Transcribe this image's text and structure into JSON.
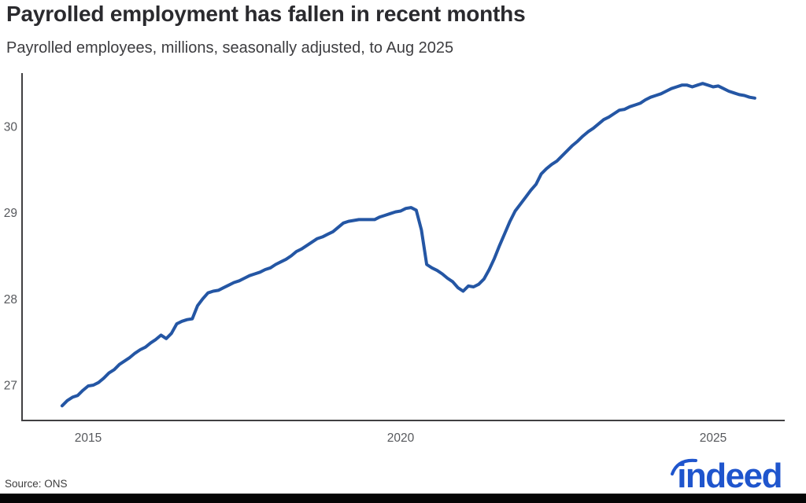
{
  "header": {
    "title": "Payrolled employment has fallen in recent months",
    "subtitle": "Payrolled employees, millions, seasonally adjusted, to Aug 2025"
  },
  "chart_data": {
    "type": "line",
    "title": "Payrolled employment has fallen in recent months",
    "xlabel": "",
    "ylabel": "Payrolled employees, millions",
    "x_ticks": [
      "2015",
      "2020",
      "2025"
    ],
    "x_tick_years": [
      2015,
      2020,
      2025
    ],
    "y_ticks": [
      "27",
      "28",
      "29",
      "30"
    ],
    "y_tick_values": [
      27,
      28,
      29,
      30
    ],
    "x_range_years": [
      2013.94,
      2026.15
    ],
    "ylim": [
      26.6,
      30.62
    ],
    "grid": false,
    "legend_position": "none",
    "line_color": "#2456a4",
    "axis_color": "#414042",
    "tick_label_color": "#56585c",
    "series": [
      {
        "name": "Payrolled employees, millions, seasonally adjusted",
        "x_start_year": 2014.583,
        "x_start_label": "Jul 2014",
        "x_end_label": "Aug 2025",
        "x_step": "monthly",
        "values": [
          26.76,
          26.82,
          26.86,
          26.88,
          26.94,
          26.99,
          27.0,
          27.03,
          27.08,
          27.14,
          27.18,
          27.24,
          27.28,
          27.32,
          27.37,
          27.41,
          27.44,
          27.49,
          27.53,
          27.58,
          27.54,
          27.6,
          27.71,
          27.74,
          27.76,
          27.77,
          27.92,
          28.0,
          28.07,
          28.09,
          28.1,
          28.13,
          28.16,
          28.19,
          28.21,
          28.24,
          28.27,
          28.29,
          28.31,
          28.34,
          28.36,
          28.4,
          28.43,
          28.46,
          28.5,
          28.55,
          28.58,
          28.62,
          28.66,
          28.7,
          28.72,
          28.75,
          28.78,
          28.83,
          28.88,
          28.9,
          28.91,
          28.92,
          28.92,
          28.92,
          28.92,
          28.95,
          28.97,
          28.99,
          29.01,
          29.02,
          29.05,
          29.06,
          29.03,
          28.8,
          28.4,
          28.36,
          28.33,
          28.29,
          28.24,
          28.2,
          28.13,
          28.09,
          28.15,
          28.14,
          28.17,
          28.23,
          28.34,
          28.47,
          28.62,
          28.76,
          28.9,
          29.02,
          29.1,
          29.18,
          29.26,
          29.33,
          29.45,
          29.51,
          29.56,
          29.6,
          29.66,
          29.72,
          29.78,
          29.83,
          29.89,
          29.94,
          29.98,
          30.03,
          30.08,
          30.11,
          30.15,
          30.19,
          30.2,
          30.23,
          30.25,
          30.27,
          30.31,
          30.34,
          30.36,
          30.38,
          30.41,
          30.44,
          30.46,
          30.48,
          30.48,
          30.46,
          30.48,
          30.5,
          30.48,
          30.46,
          30.47,
          30.44,
          30.41,
          30.39,
          30.37,
          30.36,
          30.34,
          30.33
        ]
      }
    ]
  },
  "footer": {
    "source": "Source: ONS",
    "logo_text": "indeed",
    "logo_color": "#1f55cd"
  }
}
